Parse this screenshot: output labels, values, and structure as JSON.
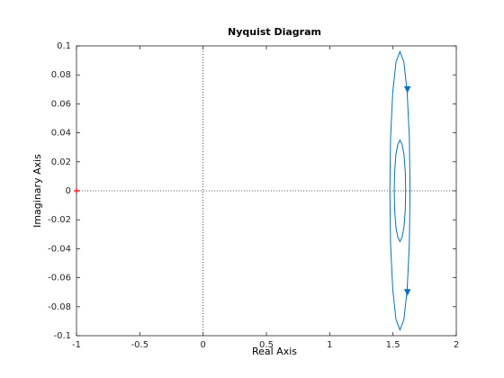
{
  "chart_data": {
    "type": "line",
    "title": "Nyquist Diagram",
    "xlabel": "Real Axis",
    "ylabel": "Imaginary Axis",
    "xlim": [
      -1,
      2
    ],
    "xticks": [
      -1,
      -0.5,
      0,
      0.5,
      1,
      1.5,
      2
    ],
    "ylim": [
      -0.1,
      0.1
    ],
    "yticks": [
      -0.1,
      -0.08,
      -0.06,
      -0.04,
      -0.02,
      0,
      0.02,
      0.04,
      0.06,
      0.08,
      0.1
    ],
    "series": [
      {
        "color": "#0072bd",
        "x": [
          1.635,
          1.629,
          1.612,
          1.586,
          1.555,
          1.524,
          1.498,
          1.481,
          1.475,
          1.481,
          1.498,
          1.524,
          1.555,
          1.586,
          1.612,
          1.629,
          1.635
        ],
        "values": [
          0,
          0.037,
          0.068,
          0.089,
          0.096,
          0.089,
          0.068,
          0.037,
          0,
          -0.037,
          -0.068,
          -0.089,
          -0.096,
          -0.089,
          -0.068,
          -0.037,
          0
        ]
      },
      {
        "color": "#0072bd",
        "x": [
          1.6,
          1.597,
          1.587,
          1.572,
          1.555,
          1.538,
          1.523,
          1.513,
          1.51,
          1.513,
          1.523,
          1.538,
          1.555,
          1.572,
          1.587,
          1.597,
          1.6
        ],
        "values": [
          0,
          0.013,
          0.025,
          0.032,
          0.035,
          0.032,
          0.025,
          0.013,
          0,
          -0.013,
          -0.025,
          -0.032,
          -0.035,
          -0.032,
          -0.025,
          -0.013,
          0
        ]
      }
    ],
    "arrows": [
      {
        "x": 1.614,
        "y": 0.07
      },
      {
        "x": 1.614,
        "y": -0.07
      }
    ],
    "critical_point": {
      "x": -1,
      "y": 0,
      "color": "#ff0000"
    }
  }
}
